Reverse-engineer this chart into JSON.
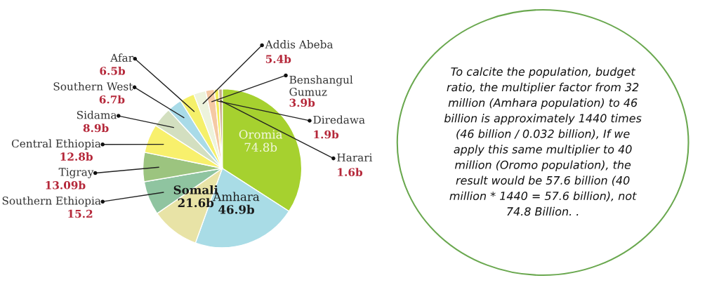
{
  "chart_data": [
    {
      "type": "pie",
      "categories": [
        "Oromia",
        "Amhara",
        "Somali",
        "Southern Ethiopia",
        "Tigray",
        "Central Ethiopia",
        "Sidama",
        "Southern West",
        "Afar",
        "Addis Abeba",
        "Benshangul\nGumuz",
        "Diredawa",
        "Harari"
      ],
      "values": [
        74.8,
        46.9,
        21.6,
        15.2,
        13.09,
        12.8,
        8.9,
        6.7,
        6.5,
        5.4,
        3.9,
        1.9,
        1.6
      ],
      "value_labels": [
        "74.8b",
        "46.9b",
        "21.6b",
        "15.2",
        "13.09b",
        "12.8b",
        "8.9b",
        "6.7b",
        "6.5b",
        "5.4b",
        "3.9b",
        "1.9b",
        "1.6b"
      ],
      "colors": [
        "#a6d12f",
        "#a9dce6",
        "#e8e3a6",
        "#8fc4a0",
        "#9cc47f",
        "#f8f06c",
        "#d3dfc0",
        "#a9dbe8",
        "#f5f06a",
        "#edf3dc",
        "#f5c9a4",
        "#f3ee5a",
        "#c9a98a"
      ]
    },
    {
      "type": "other",
      "annotations": [
        "To calcite the population, budget\nratio, the multiplier factor from 32\nmillion (Amhara population) to 46\nbillion is approximately 1440 times\n(46 billion / 0.032 billion), If we\napply this same multiplier to 40\nmillion (Oromo population), the\nresult would be 57.6 billion (40\nmillion * 1440 = 57.6 billion), not\n74.8 Billion. ."
      ]
    }
  ]
}
